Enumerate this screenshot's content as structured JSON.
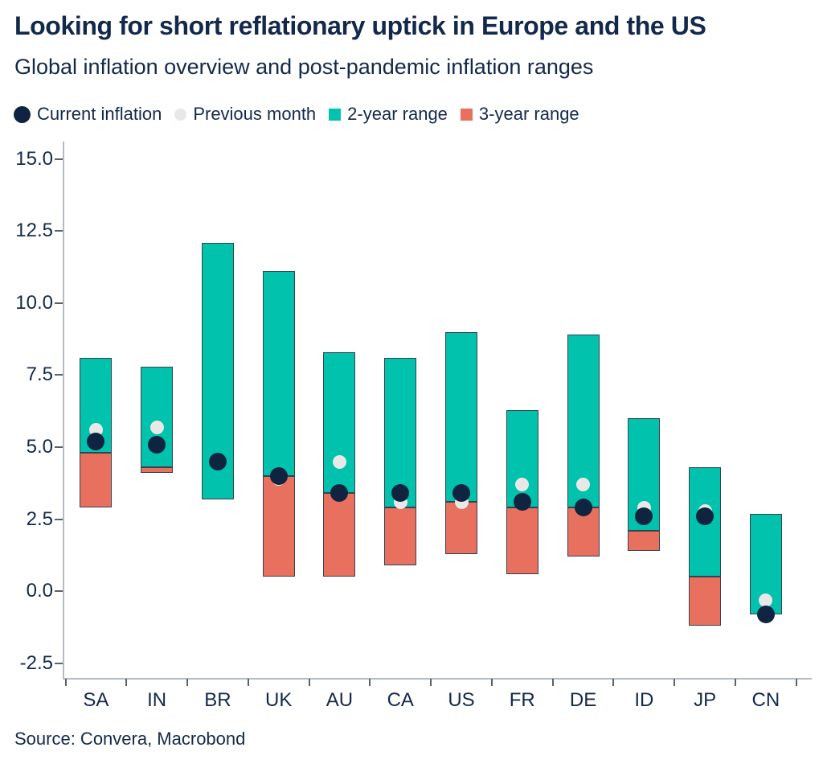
{
  "page": {
    "title": "Looking for short reflationary uptick in Europe and the US",
    "subtitle": "Global inflation overview and post-pandemic inflation ranges",
    "source": "Source: Convera, Macrobond"
  },
  "legend": {
    "items": [
      {
        "label": "Current inflation",
        "shape": "circle",
        "color": "#0e2440"
      },
      {
        "label": "Previous month",
        "shape": "circle",
        "color": "#e8e8e8"
      },
      {
        "label": "2-year range",
        "shape": "square",
        "color": "#00c2ad"
      },
      {
        "label": "3-year range",
        "shape": "square",
        "color": "#e7705f"
      }
    ]
  },
  "colors": {
    "text": "#13294b",
    "axis_line": "#b3bac0",
    "tick": "#5a6268",
    "bar_border": "#37424d",
    "teal": "#00c2ad",
    "salmon": "#e7705f",
    "current_dot": "#0e2440",
    "previous_dot": "#e8e8e8"
  },
  "chart_data": {
    "type": "bar",
    "title": "Looking for short reflationary uptick in Europe and the US",
    "subtitle": "Global inflation overview and post-pandemic inflation ranges",
    "source": "Source: Convera, Macrobond",
    "grid": false,
    "legend_position": "top",
    "categories": [
      "SA",
      "IN",
      "BR",
      "UK",
      "AU",
      "CA",
      "US",
      "FR",
      "DE",
      "ID",
      "JP",
      "CN"
    ],
    "y_axis": {
      "min": -3.0,
      "max": 15.6,
      "tick_values": [
        15.0,
        12.5,
        10.0,
        7.5,
        5.0,
        2.5,
        0.0,
        -2.5
      ],
      "tick_labels": [
        "15.0",
        "12.5",
        "10.0",
        "7.5",
        "5.0",
        "2.5",
        "0.0",
        "-2.5"
      ]
    },
    "series": [
      {
        "name": "2-year range",
        "type": "range-bar",
        "color": "#00c2ad",
        "ranges": [
          [
            4.8,
            8.1
          ],
          [
            4.3,
            7.8
          ],
          [
            3.2,
            12.1
          ],
          [
            4.0,
            11.1
          ],
          [
            3.4,
            8.3
          ],
          [
            2.9,
            8.1
          ],
          [
            3.1,
            9.0
          ],
          [
            2.9,
            6.3
          ],
          [
            2.9,
            8.9
          ],
          [
            2.1,
            6.0
          ],
          [
            0.5,
            4.3
          ],
          [
            -0.8,
            2.7
          ]
        ]
      },
      {
        "name": "3-year range",
        "type": "range-bar",
        "color": "#e7705f",
        "ranges": [
          [
            2.9,
            4.8
          ],
          [
            4.1,
            4.3
          ],
          null,
          [
            0.5,
            4.0
          ],
          [
            0.5,
            3.4
          ],
          [
            0.9,
            2.9
          ],
          [
            1.3,
            3.1
          ],
          [
            0.6,
            2.9
          ],
          [
            1.2,
            2.9
          ],
          [
            1.4,
            2.1
          ],
          [
            -1.2,
            0.5
          ],
          null
        ]
      },
      {
        "name": "Previous month",
        "type": "point",
        "color": "#e8e8e8",
        "values": [
          5.6,
          5.7,
          4.5,
          3.9,
          4.5,
          3.1,
          3.1,
          3.7,
          3.7,
          2.9,
          2.8,
          -0.3
        ]
      },
      {
        "name": "Current inflation",
        "type": "point",
        "color": "#0e2440",
        "values": [
          5.2,
          5.1,
          4.5,
          4.0,
          3.4,
          3.4,
          3.4,
          3.1,
          2.9,
          2.6,
          2.6,
          -0.8
        ]
      }
    ]
  }
}
